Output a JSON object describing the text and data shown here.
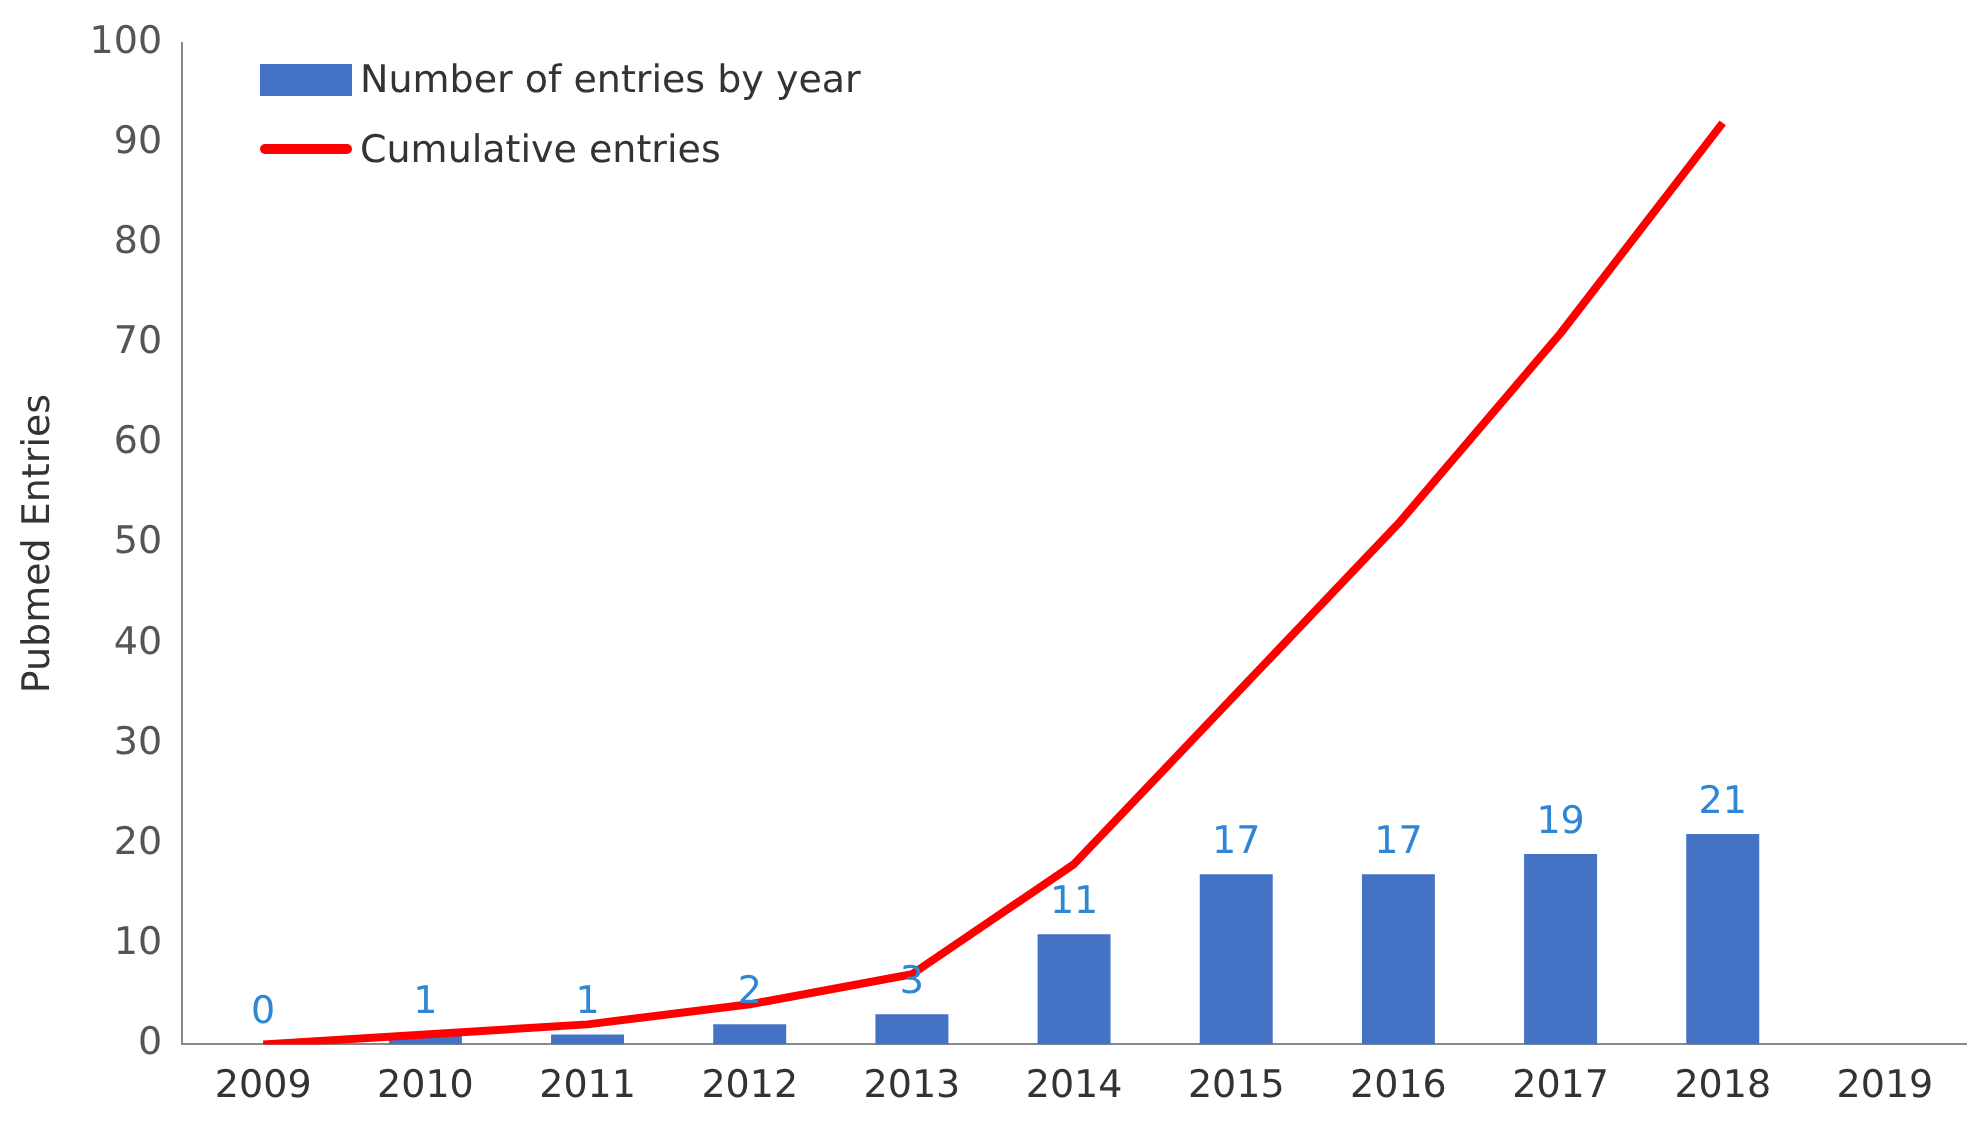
{
  "chart_data": {
    "type": "bar",
    "ylabel": "Pubmed Entries",
    "categories": [
      "2009",
      "2010",
      "2011",
      "2012",
      "2013",
      "2014",
      "2015",
      "2016",
      "2017",
      "2018",
      "2019"
    ],
    "series": [
      {
        "name": "Number of entries by year",
        "color": "#4472c4",
        "values": [
          0,
          1,
          1,
          2,
          3,
          11,
          17,
          17,
          19,
          21,
          null
        ],
        "value_labels": [
          "0",
          "1",
          "1",
          "2",
          "3",
          "11",
          "17",
          "17",
          "19",
          "21",
          null
        ]
      },
      {
        "name": "Cumulative entries",
        "type": "line",
        "color": "#ff0000",
        "values": [
          0,
          1,
          2,
          4,
          7,
          18,
          35,
          52,
          71,
          92,
          null
        ]
      }
    ],
    "ylim": [
      0,
      100
    ],
    "yticks": [
      0,
      10,
      20,
      30,
      40,
      50,
      60,
      70,
      80,
      90,
      100
    ],
    "grid": false,
    "legend": "top left",
    "marker": "none"
  }
}
